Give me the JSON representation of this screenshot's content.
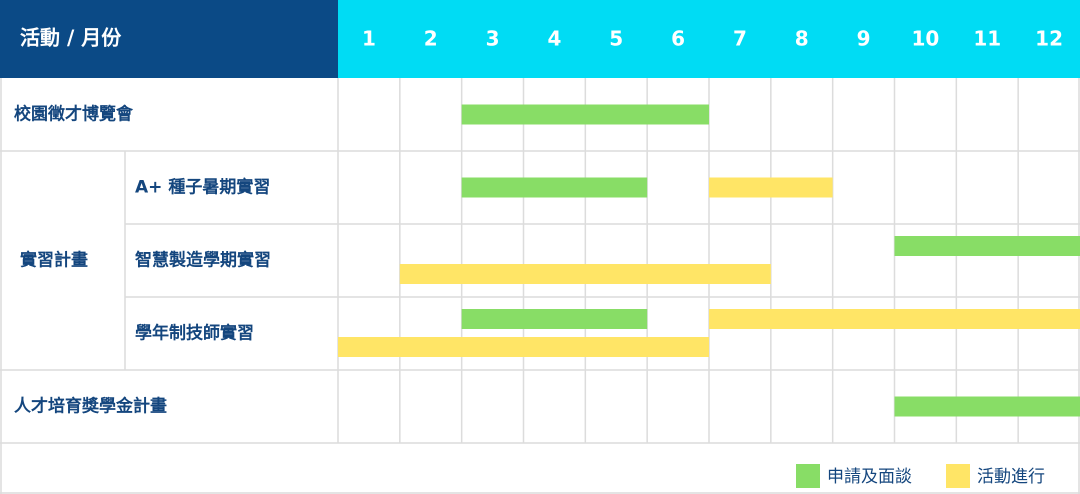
{
  "chart_data": {
    "type": "gantt",
    "header": "活動 / 月份",
    "categories": [
      "1",
      "2",
      "3",
      "4",
      "5",
      "6",
      "7",
      "8",
      "9",
      "10",
      "11",
      "12"
    ],
    "series": [
      {
        "name": "申請及面談",
        "color": "#88dd66"
      },
      {
        "name": "活動進行",
        "color": "#ffe566"
      }
    ],
    "rows": [
      {
        "label": "校園徵才博覽會",
        "lanes": [
          [
            {
              "series": 0,
              "start": 3,
              "end": 6
            }
          ]
        ]
      },
      {
        "group": "實習計畫",
        "rows": [
          {
            "label": "A+ 種子暑期實習",
            "lanes": [
              [
                {
                  "series": 0,
                  "start": 3,
                  "end": 5
                },
                {
                  "series": 1,
                  "start": 7,
                  "end": 8
                }
              ]
            ]
          },
          {
            "label": "智慧製造學期實習",
            "lanes": [
              [
                {
                  "series": 0,
                  "start": 10,
                  "end": 12
                }
              ],
              [
                {
                  "series": 1,
                  "start": 2,
                  "end": 7
                }
              ]
            ]
          },
          {
            "label": "學年制技師實習",
            "lanes": [
              [
                {
                  "series": 0,
                  "start": 3,
                  "end": 5
                },
                {
                  "series": 1,
                  "start": 7,
                  "end": 12
                }
              ],
              [
                {
                  "series": 1,
                  "start": 1,
                  "end": 6
                }
              ]
            ]
          }
        ]
      },
      {
        "label": "人才培育獎學金計畫",
        "lanes": [
          [
            {
              "series": 0,
              "start": 10,
              "end": 12
            }
          ]
        ]
      }
    ]
  }
}
